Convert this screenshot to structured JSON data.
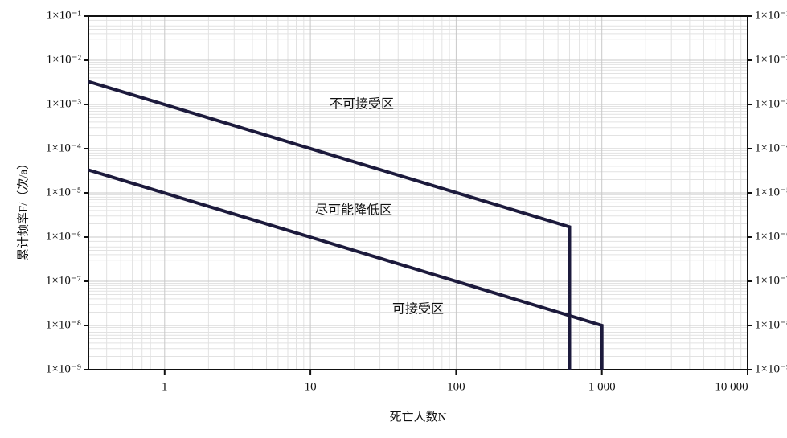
{
  "chart_data": {
    "type": "line",
    "x_label": "死亡人数N",
    "y_label": "累计频率F/（次/a）",
    "annotations": [
      "不可接受区",
      "尽可能降低区",
      "可接受区"
    ],
    "xlog": true,
    "ylog": true,
    "grid": true,
    "xlim": [
      0.3,
      10000
    ],
    "ylim": [
      1e-09,
      0.1
    ],
    "xticks": [
      1,
      10,
      100,
      {
        "value": 1000,
        "label": "1 000"
      },
      {
        "value": 10000,
        "label": "10 000"
      }
    ],
    "yticks": [
      {
        "value": 1e-09,
        "label": "1×10⁻⁹"
      },
      {
        "value": 1e-08,
        "label": "1×10⁻⁸"
      },
      {
        "value": 1e-07,
        "label": "1×10⁻⁷"
      },
      {
        "value": 1e-06,
        "label": "1×10⁻⁶"
      },
      {
        "value": 1e-05,
        "label": "1×10⁻⁵"
      },
      {
        "value": 0.0001,
        "label": "1×10⁻⁴"
      },
      {
        "value": 0.001,
        "label": "1×10⁻³"
      },
      {
        "value": 0.01,
        "label": "1×10⁻²"
      },
      {
        "value": 0.1,
        "label": "1×10⁻¹"
      }
    ],
    "series": [
      {
        "color": "#1c1a3c",
        "x": [
          0.3,
          600,
          600
        ],
        "values": [
          0.0033,
          1.7e-06,
          1e-09
        ]
      },
      {
        "color": "#1c1a3c",
        "x": [
          0.3,
          1000,
          1000
        ],
        "values": [
          3.3e-05,
          1e-08,
          1e-09
        ]
      }
    ]
  }
}
